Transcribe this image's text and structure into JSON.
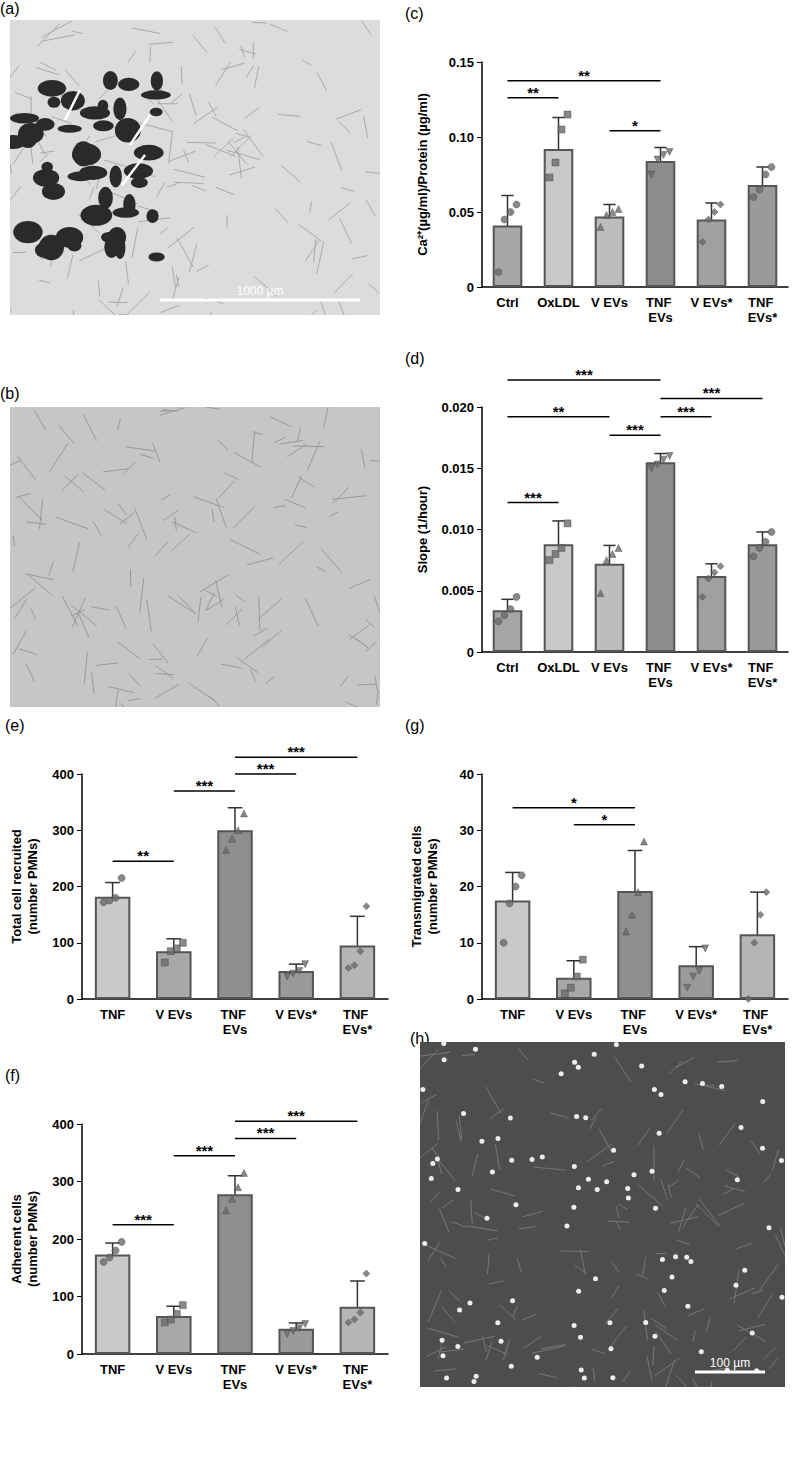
{
  "chart_data": [
    {
      "type": "bar",
      "title": "(c)",
      "ylabel": "Ca²⁺(µg/ml)/Protein (µg/ml)",
      "categories": [
        "Ctrl",
        "OxLDL",
        "V EVs",
        "TNF EVs",
        "V EVs*",
        "TNF EVs*"
      ],
      "values": [
        0.041,
        0.092,
        0.047,
        0.084,
        0.045,
        0.068
      ],
      "errors": [
        0.02,
        0.021,
        0.008,
        0.009,
        0.011,
        0.012
      ],
      "points": [
        [
          0.01,
          0.045,
          0.05,
          0.055
        ],
        [
          0.073,
          0.083,
          0.105,
          0.115
        ],
        [
          0.04,
          0.048,
          0.05,
          0.052
        ],
        [
          0.075,
          0.085,
          0.088,
          0.09
        ],
        [
          0.03,
          0.045,
          0.05,
          0.055
        ],
        [
          0.06,
          0.065,
          0.075,
          0.08
        ]
      ],
      "colors": [
        "#a6a6a6",
        "#c8c8c8",
        "#bdbdbd",
        "#8c8c8c",
        "#a0a0a0",
        "#9a9a9a"
      ],
      "significance": [
        {
          "from": "Ctrl",
          "to": "OxLDL",
          "label": "**"
        },
        {
          "from": "Ctrl",
          "to": "TNF EVs",
          "label": "**"
        },
        {
          "from": "V EVs",
          "to": "TNF EVs",
          "label": "*"
        }
      ],
      "ylim": [
        0,
        0.15
      ],
      "yticks": [
        0,
        0.05,
        {
          "value": 0.1,
          "label": "0.10"
        },
        0.15
      ],
      "grid": false
    },
    {
      "type": "bar",
      "title": "(d)",
      "ylabel": "Slope (1/hour)",
      "categories": [
        "Ctrl",
        "OxLDL",
        "V EVs",
        "TNF EVs",
        "V EVs*",
        "TNF EVs*"
      ],
      "values": [
        0.0034,
        0.0088,
        0.0072,
        0.0155,
        0.0062,
        0.0088
      ],
      "errors": [
        0.0009,
        0.0019,
        0.0015,
        0.0007,
        0.001,
        0.001
      ],
      "points": [
        [
          0.0025,
          0.003,
          0.0035,
          0.0045
        ],
        [
          0.0075,
          0.008,
          0.0085,
          0.0105
        ],
        [
          0.0048,
          0.0075,
          0.008,
          0.0085
        ],
        [
          0.015,
          0.0153,
          0.0157,
          0.016
        ],
        [
          0.0045,
          0.006,
          0.0065,
          0.007
        ],
        [
          0.0078,
          0.0085,
          0.009,
          0.0098
        ]
      ],
      "colors": [
        "#a6a6a6",
        "#c8c8c8",
        "#bdbdbd",
        "#8c8c8c",
        "#a0a0a0",
        "#9a9a9a"
      ],
      "significance": [
        {
          "from": "Ctrl",
          "to": "OxLDL",
          "label": "***"
        },
        {
          "from": "Ctrl",
          "to": "V EVs",
          "label": "**"
        },
        {
          "from": "Ctrl",
          "to": "TNF EVs",
          "label": "***"
        },
        {
          "from": "V EVs",
          "to": "TNF EVs",
          "label": "***"
        },
        {
          "from": "TNF EVs",
          "to": "V EVs*",
          "label": "***"
        },
        {
          "from": "TNF EVs",
          "to": "TNF EVs*",
          "label": "***"
        }
      ],
      "ylim": [
        0,
        0.02
      ],
      "yticks": [
        0,
        0.005,
        {
          "value": 0.01,
          "label": "0.010"
        },
        0.015,
        {
          "value": 0.02,
          "label": "0.020"
        }
      ],
      "grid": false
    },
    {
      "type": "bar",
      "title": "(e)",
      "ylabel": "Total cell recruited\n(number PMNs)",
      "categories": [
        "TNF",
        "V EVs",
        "TNF EVs",
        "V EVs*",
        "TNF EVs*"
      ],
      "values": [
        182,
        85,
        300,
        50,
        95
      ],
      "errors": [
        25,
        22,
        40,
        12,
        52
      ],
      "points": [
        [
          172,
          175,
          180,
          215
        ],
        [
          65,
          85,
          90,
          100
        ],
        [
          265,
          285,
          300,
          330
        ],
        [
          40,
          45,
          50,
          62
        ],
        [
          55,
          60,
          85,
          165
        ]
      ],
      "colors": [
        "#c9c9c9",
        "#a8a8a8",
        "#8f8f8f",
        "#9a9a9a",
        "#b5b5b5"
      ],
      "significance": [
        {
          "from": "TNF",
          "to": "V EVs",
          "label": "**"
        },
        {
          "from": "V EVs",
          "to": "TNF EVs",
          "label": "***"
        },
        {
          "from": "TNF EVs",
          "to": "V EVs*",
          "label": "***"
        },
        {
          "from": "TNF EVs",
          "to": "TNF EVs*",
          "label": "***"
        }
      ],
      "ylim": [
        0,
        400
      ],
      "yticks": [
        0,
        100,
        200,
        300,
        400
      ],
      "grid": false
    },
    {
      "type": "bar",
      "title": "(g)",
      "ylabel": "Transmigrated cells\n(number PMNs)",
      "categories": [
        "TNF",
        "V EVs",
        "TNF EVs",
        "V EVs*",
        "TNF EVs*"
      ],
      "values": [
        17.5,
        3.8,
        19.2,
        6,
        11.5
      ],
      "errors": [
        5,
        3,
        7.2,
        3.3,
        7.5
      ],
      "points": [
        [
          10,
          17,
          20,
          22
        ],
        [
          1,
          2,
          4,
          7
        ],
        [
          12,
          15,
          19,
          28
        ],
        [
          2,
          4,
          5,
          9
        ],
        [
          0,
          10,
          15,
          19
        ]
      ],
      "colors": [
        "#c9c9c9",
        "#a8a8a8",
        "#8f8f8f",
        "#9a9a9a",
        "#b5b5b5"
      ],
      "significance": [
        {
          "from": "TNF",
          "to": "TNF EVs",
          "label": "*"
        },
        {
          "from": "V EVs",
          "to": "TNF EVs",
          "label": "*"
        }
      ],
      "ylim": [
        0,
        40
      ],
      "yticks": [
        0,
        10,
        20,
        30,
        40
      ],
      "grid": false
    },
    {
      "type": "bar",
      "title": "(f)",
      "ylabel": "Adherent cells\n(number PMNs)",
      "categories": [
        "TNF",
        "V EVs",
        "TNF EVs",
        "V EVs*",
        "TNF EVs*"
      ],
      "values": [
        173,
        66,
        278,
        44,
        82
      ],
      "errors": [
        20,
        17,
        32,
        10,
        45
      ],
      "points": [
        [
          160,
          168,
          180,
          195
        ],
        [
          55,
          60,
          70,
          85
        ],
        [
          250,
          270,
          290,
          315
        ],
        [
          35,
          40,
          45,
          52
        ],
        [
          55,
          60,
          72,
          140
        ]
      ],
      "colors": [
        "#c9c9c9",
        "#a8a8a8",
        "#8f8f8f",
        "#9a9a9a",
        "#b5b5b5"
      ],
      "significance": [
        {
          "from": "TNF",
          "to": "V EVs",
          "label": "***"
        },
        {
          "from": "V EVs",
          "to": "TNF EVs",
          "label": "***"
        },
        {
          "from": "TNF EVs",
          "to": "V EVs*",
          "label": "***"
        },
        {
          "from": "TNF EVs",
          "to": "TNF EVs*",
          "label": "***"
        }
      ],
      "ylim": [
        0,
        400
      ],
      "yticks": [
        0,
        100,
        200,
        300,
        400
      ],
      "grid": false
    }
  ],
  "images": [
    {
      "label": "(a)",
      "scale_bar": "1000 µm"
    },
    {
      "label": "(b)"
    },
    {
      "label": "(h)",
      "scale_bar": "100 µm"
    }
  ]
}
